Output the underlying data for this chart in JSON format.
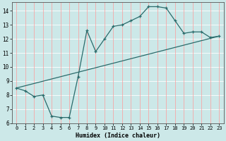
{
  "title": "",
  "xlabel": "Humidex (Indice chaleur)",
  "bg_color": "#cce8e8",
  "grid_h_color": "#ffffff",
  "grid_v_color": "#ff9999",
  "line_color": "#2a6b6b",
  "xlim": [
    -0.5,
    23.5
  ],
  "ylim": [
    6,
    14.6
  ],
  "xticks": [
    0,
    1,
    2,
    3,
    4,
    5,
    6,
    7,
    8,
    9,
    10,
    11,
    12,
    13,
    14,
    15,
    16,
    17,
    18,
    19,
    20,
    21,
    22,
    23
  ],
  "yticks": [
    6,
    7,
    8,
    9,
    10,
    11,
    12,
    13,
    14
  ],
  "curve1_x": [
    0,
    1,
    2,
    3,
    4,
    5,
    6,
    7,
    8,
    9,
    10,
    11,
    12,
    13,
    14,
    15,
    16,
    17,
    18,
    19,
    20,
    21,
    22,
    23
  ],
  "curve1_y": [
    8.5,
    8.3,
    7.9,
    8.0,
    6.5,
    6.4,
    6.4,
    9.3,
    12.6,
    11.1,
    12.0,
    12.9,
    13.0,
    13.3,
    13.6,
    14.3,
    14.3,
    14.2,
    13.3,
    12.4,
    12.5,
    12.5,
    12.1,
    12.2
  ],
  "curve2_x": [
    0,
    23
  ],
  "curve2_y": [
    8.5,
    12.2
  ]
}
